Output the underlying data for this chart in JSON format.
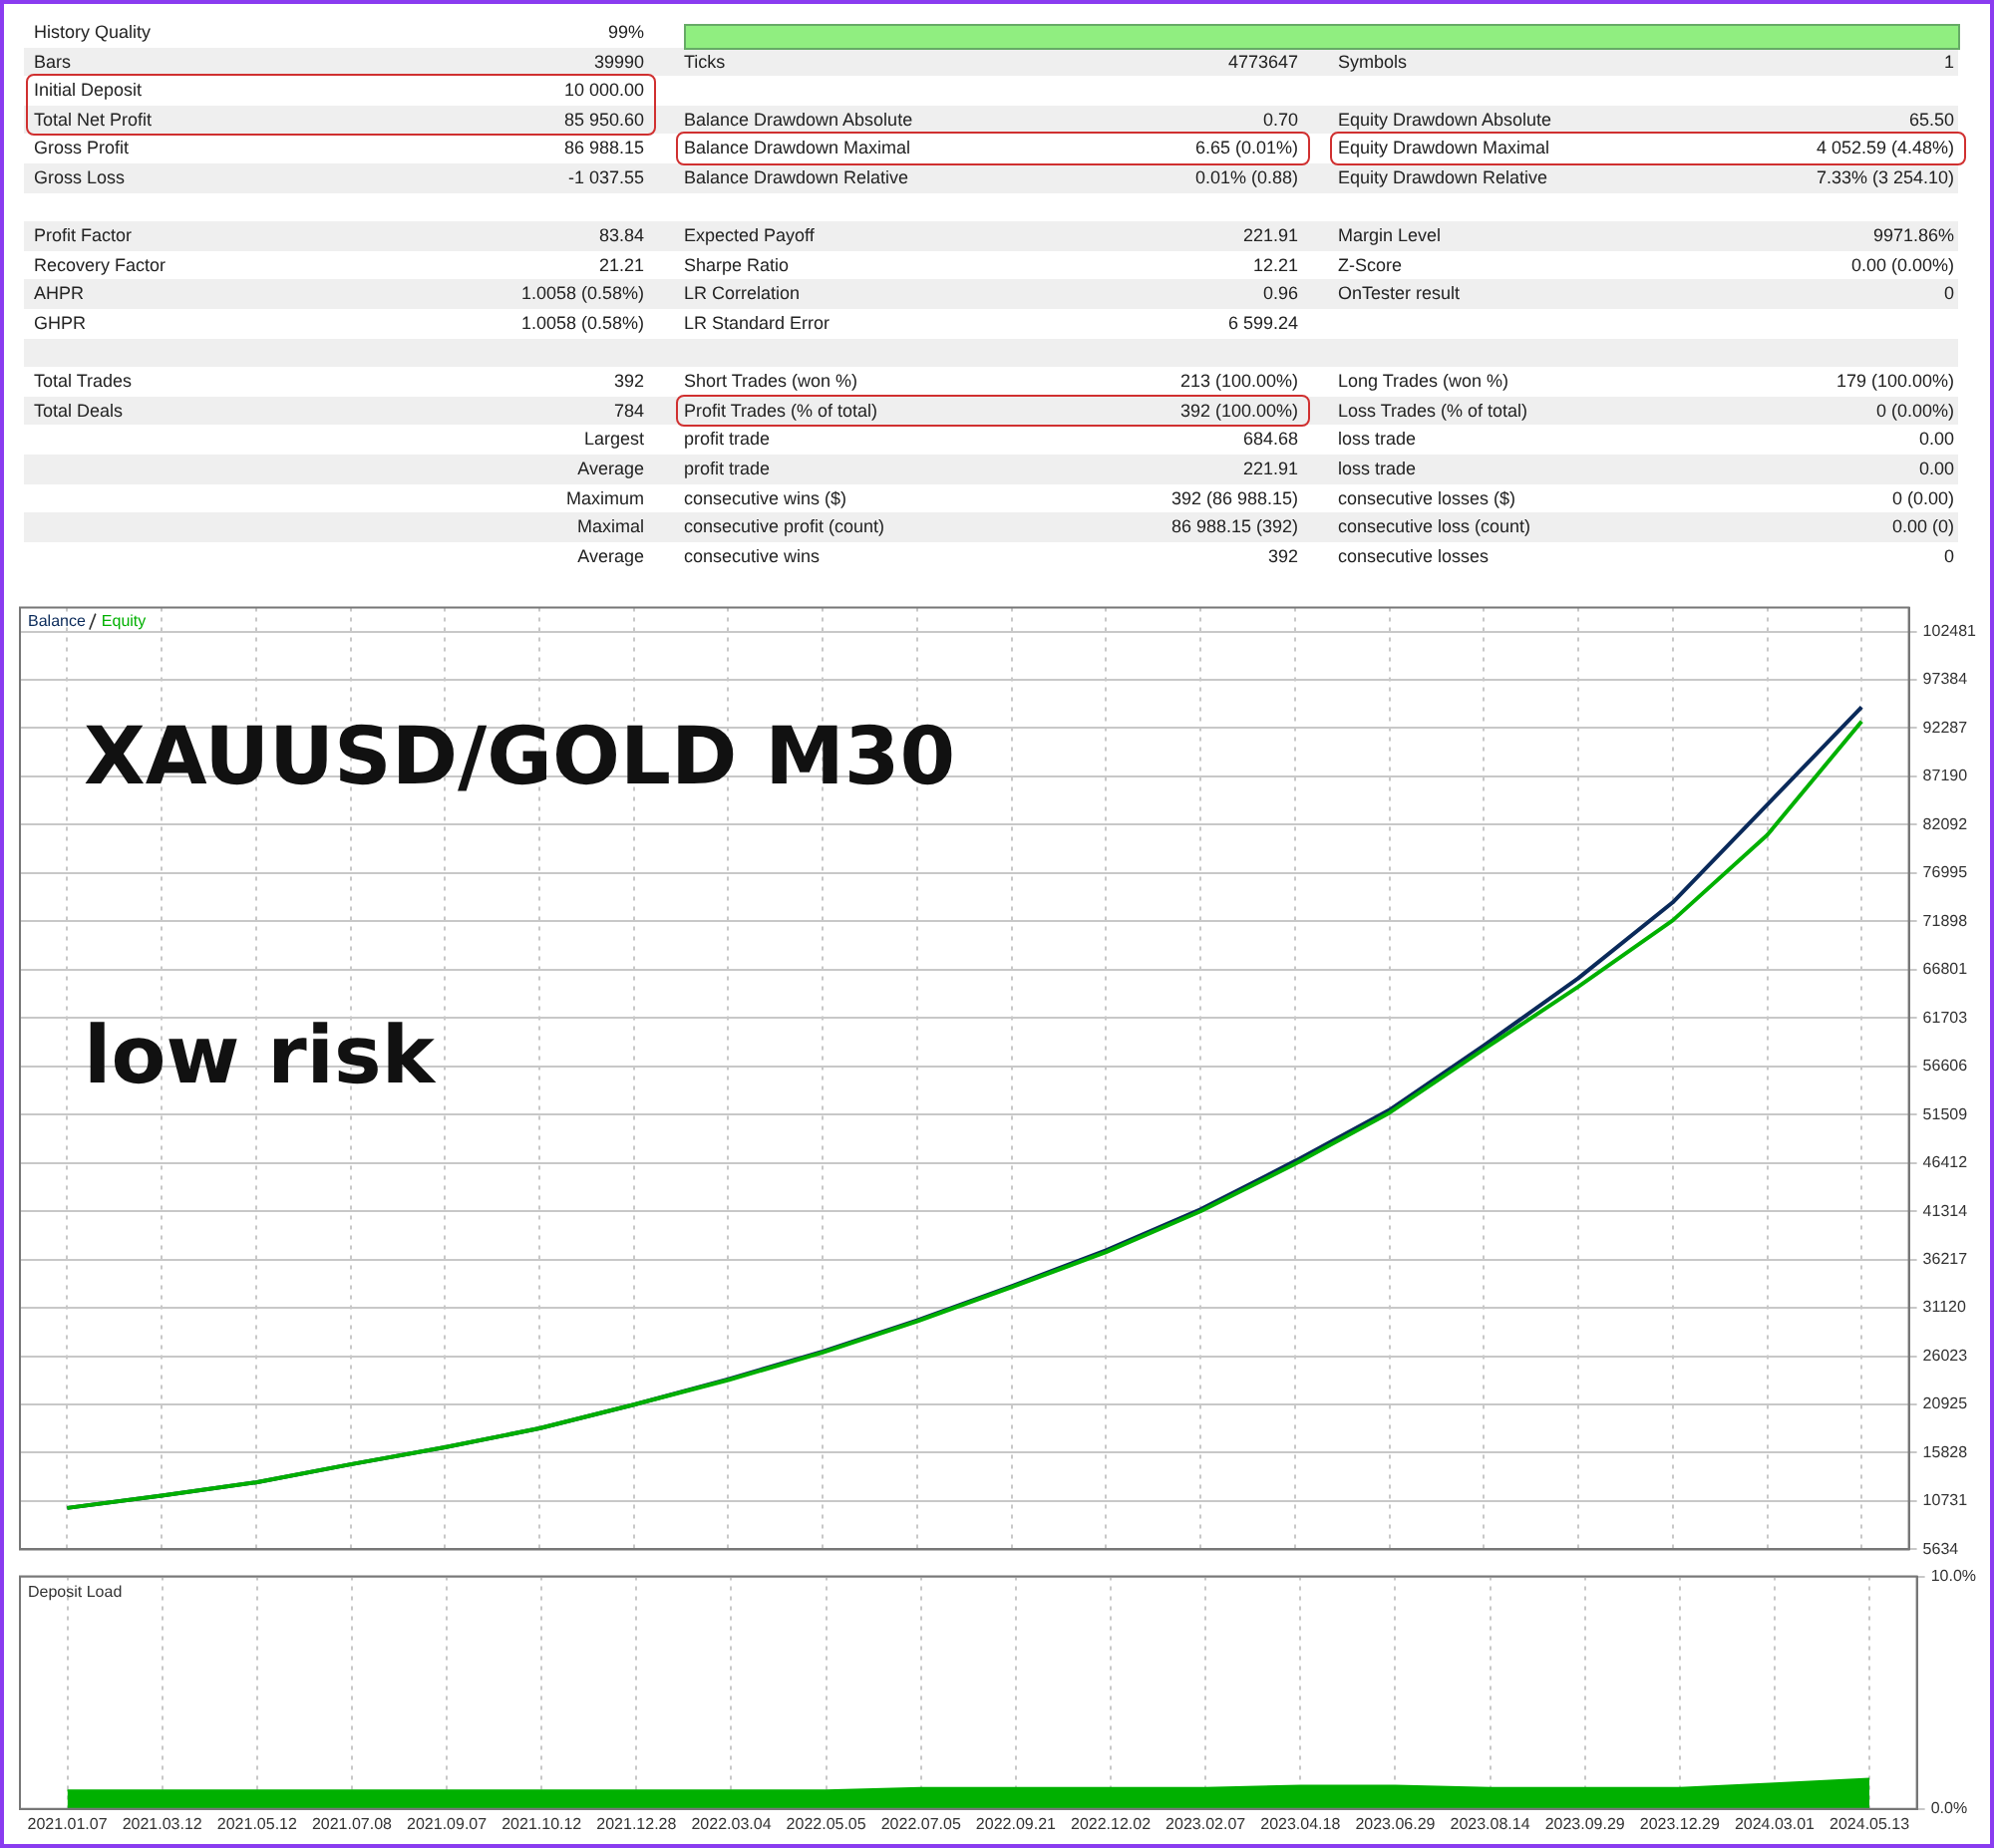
{
  "chart_data": [
    {
      "type": "other",
      "annotations": [
        "History Quality",
        "99%",
        "Bars",
        "39990",
        "Ticks",
        "4773647",
        "Symbols",
        "1",
        "Initial Deposit",
        "10 000.00",
        "Total Net Profit",
        "85 950.60",
        "Balance Drawdown Absolute",
        "0.70",
        "Equity Drawdown Absolute",
        "65.50",
        "Gross Profit",
        "86 988.15",
        "Balance Drawdown Maximal",
        "6.65 (0.01%)",
        "Equity Drawdown Maximal",
        "4 052.59 (4.48%)",
        "Gross Loss",
        "-1 037.55",
        "Balance Drawdown Relative",
        "0.01% (0.88)",
        "Equity Drawdown Relative",
        "7.33% (3 254.10)",
        "Profit Factor",
        "83.84",
        "Expected Payoff",
        "221.91",
        "Margin Level",
        "9971.86%",
        "Recovery Factor",
        "21.21",
        "Sharpe Ratio",
        "12.21",
        "Z-Score",
        "0.00 (0.00%)",
        "AHPR",
        "1.0058 (0.58%)",
        "LR Correlation",
        "0.96",
        "OnTester result",
        "0",
        "GHPR",
        "1.0058 (0.58%)",
        "LR Standard Error",
        "6 599.24",
        "Total Trades",
        "392",
        "Short Trades (won %)",
        "213 (100.00%)",
        "Long Trades (won %)",
        "179 (100.00%)",
        "Total Deals",
        "784",
        "Profit Trades (% of total)",
        "392 (100.00%)",
        "Loss Trades (% of total)",
        "0 (0.00%)",
        "Largest",
        "profit trade",
        "684.68",
        "loss trade",
        "0.00",
        "Average",
        "profit trade",
        "221.91",
        "loss trade",
        "0.00",
        "Maximum",
        "consecutive wins ($)",
        "392 (86 988.15)",
        "consecutive losses ($)",
        "0 (0.00)",
        "Maximal",
        "consecutive profit (count)",
        "86 988.15 (392)",
        "consecutive loss (count)",
        "0.00 (0)",
        "Average",
        "consecutive wins",
        "392",
        "consecutive losses",
        "0"
      ]
    },
    {
      "type": "line",
      "categories": [
        "2021.01.07",
        "2021.03.12",
        "2021.05.12",
        "2021.07.08",
        "2021.09.07",
        "2021.10.12",
        "2021.12.28",
        "2022.03.04",
        "2022.05.05",
        "2022.07.05",
        "2022.09.21",
        "2022.12.02",
        "2023.02.07",
        "2023.04.18",
        "2023.06.29",
        "2023.08.14",
        "2023.09.29",
        "2023.12.29",
        "2024.03.01",
        "2024.05.13"
      ],
      "series": [
        {
          "name": "Equity",
          "color": "#00b000",
          "values": [
            10000,
            11300,
            12700,
            14600,
            16400,
            18400,
            20900,
            23500,
            26400,
            29700,
            33300,
            37000,
            41300,
            46300,
            51700,
            58400,
            65000,
            72000,
            81000,
            93000
          ]
        },
        {
          "name": "Balance",
          "color": "#0a2a5a",
          "values": [
            10000,
            11300,
            12700,
            14600,
            16400,
            18400,
            20900,
            23600,
            26500,
            29800,
            33400,
            37200,
            41500,
            46600,
            52000,
            58800,
            65900,
            73900,
            84200,
            94500
          ]
        }
      ],
      "ylim": [
        5634,
        105000
      ],
      "yticks": [
        5634,
        10731,
        15828,
        20925,
        26023,
        31120,
        36217,
        41314,
        46412,
        51509,
        56606,
        61703,
        66801,
        71898,
        76995,
        82092,
        87190,
        92287,
        97384,
        102481
      ],
      "grid": true,
      "legend": "top left",
      "tick_labels": "y",
      "annotations": [
        "XAUUSD/GOLD M30",
        "low risk"
      ]
    },
    {
      "type": "area",
      "title": "Deposit Load",
      "categories": [
        "2021.01.07",
        "2021.03.12",
        "2021.05.12",
        "2021.07.08",
        "2021.09.07",
        "2021.10.12",
        "2021.12.28",
        "2022.03.04",
        "2022.05.05",
        "2022.07.05",
        "2022.09.21",
        "2022.12.02",
        "2023.02.07",
        "2023.04.18",
        "2023.06.29",
        "2023.08.14",
        "2023.09.29",
        "2023.12.29",
        "2024.03.01",
        "2024.05.13"
      ],
      "values": [
        0.8,
        0.8,
        0.8,
        0.8,
        0.8,
        0.8,
        0.8,
        0.8,
        0.8,
        0.9,
        0.9,
        0.9,
        0.9,
        1.0,
        1.0,
        0.9,
        0.9,
        0.9,
        1.1,
        1.3
      ],
      "color": "#00b000",
      "ylim": [
        0,
        10
      ],
      "yticks": [
        {
          "value": 0,
          "label": "0.0%"
        },
        {
          "value": 10,
          "label": "10.0%"
        }
      ],
      "grid": true
    }
  ]
}
